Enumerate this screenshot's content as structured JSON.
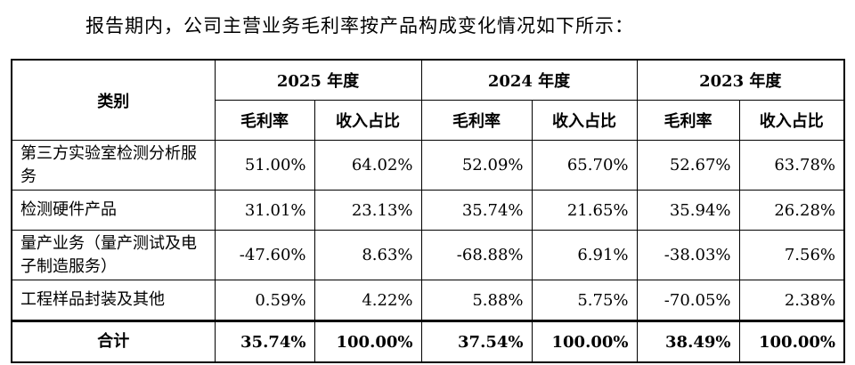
{
  "intro": "报告期内，公司主营业务毛利率按产品构成变化情况如下所示：",
  "table": {
    "category_header": "类别",
    "years": [
      "2025 年度",
      "2024 年度",
      "2023 年度"
    ],
    "sub_headers": [
      "毛利率",
      "收入占比"
    ],
    "rows": [
      {
        "category": "第三方实验室检测分析服务",
        "values": [
          "51.00%",
          "64.02%",
          "52.09%",
          "65.70%",
          "52.67%",
          "63.78%"
        ]
      },
      {
        "category": "检测硬件产品",
        "values": [
          "31.01%",
          "23.13%",
          "35.74%",
          "21.65%",
          "35.94%",
          "26.28%"
        ]
      },
      {
        "category": "量产业务（量产测试及电子制造服务）",
        "values": [
          "-47.60%",
          "8.63%",
          "-68.88%",
          "6.91%",
          "-38.03%",
          "7.56%"
        ]
      },
      {
        "category": "工程样品封装及其他",
        "values": [
          "0.59%",
          "4.22%",
          "5.88%",
          "5.75%",
          "-70.05%",
          "2.38%"
        ]
      }
    ],
    "total": {
      "category": "合计",
      "values": [
        "35.74%",
        "100.00%",
        "37.54%",
        "100.00%",
        "38.49%",
        "100.00%"
      ]
    }
  }
}
